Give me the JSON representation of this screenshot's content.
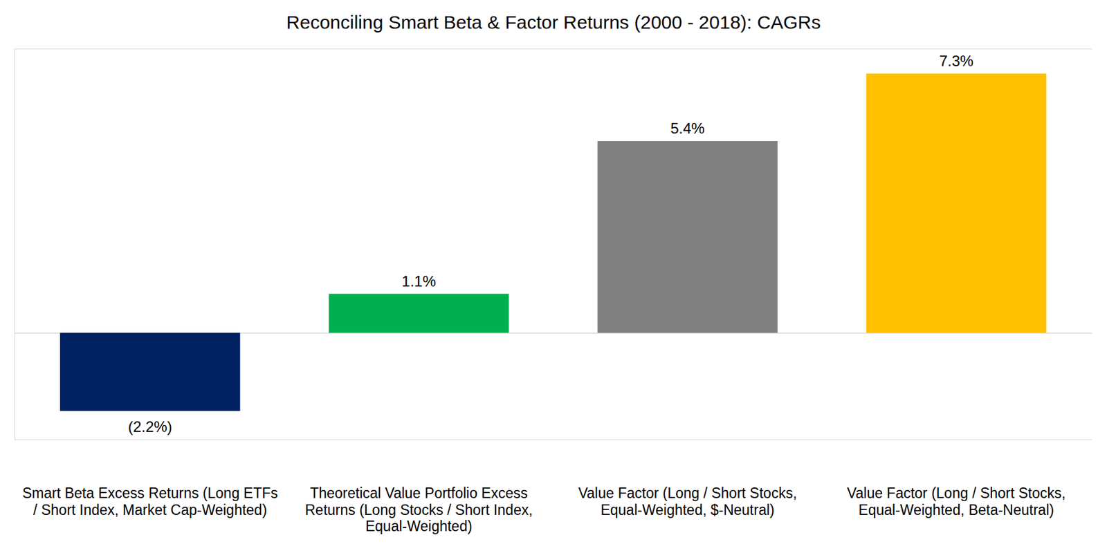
{
  "chart_data": {
    "type": "bar",
    "title": "Reconciling Smart Beta & Factor Returns (2000 - 2018): CAGRs",
    "categories": [
      "Smart Beta Excess Returns (Long ETFs / Short Index, Market Cap-Weighted)",
      "Theoretical Value Portfolio Excess Returns (Long Stocks / Short Index, Equal-Weighted)",
      "Value Factor (Long / Short Stocks, Equal-Weighted, $-Neutral)",
      "Value Factor (Long / Short Stocks, Equal-Weighted, Beta-Neutral)"
    ],
    "values": [
      -2.2,
      1.1,
      5.4,
      7.3
    ],
    "value_labels": [
      "(2.2%)",
      "1.1%",
      "5.4%",
      "7.3%"
    ],
    "colors": [
      "#002060",
      "#00b050",
      "#808080",
      "#ffc000"
    ],
    "ylim": [
      -3,
      8
    ],
    "yticks": [
      0
    ],
    "data_labels": true,
    "tick_labels": "x"
  }
}
